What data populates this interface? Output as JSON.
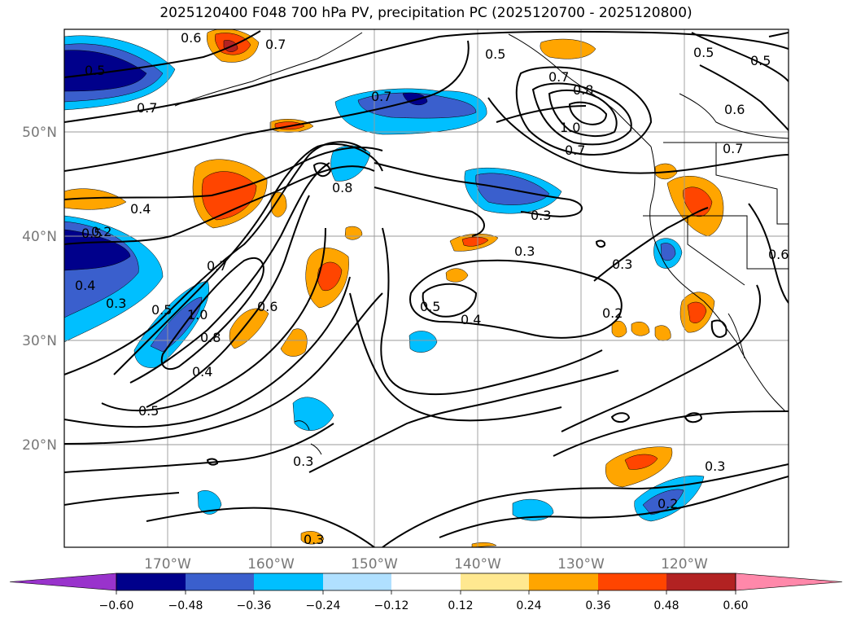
{
  "title": "2025120400 F048 700 hPa PV, precipitation PC (2025120700 - 2025120800)",
  "lat_labels": [
    "50°N",
    "40°N",
    "30°N",
    "20°N"
  ],
  "lon_labels": [
    "170°W",
    "160°W",
    "150°W",
    "140°W",
    "130°W",
    "120°W"
  ],
  "contour_labels": [
    "0.6",
    "0.7",
    "0.5",
    "0.7",
    "0.4",
    "0.5",
    "0.4",
    "0.3",
    "0.8",
    "0.7",
    "0.5",
    "1.0",
    "0.6",
    "0.8",
    "0.4",
    "0.5",
    "0.3",
    "0.7",
    "0.5",
    "0.8",
    "0.7",
    "1.0",
    "0.7",
    "0.5",
    "0.5",
    "0.6",
    "0.7",
    "0.3",
    "0.3",
    "0.5",
    "0.4",
    "0.3",
    "0.2",
    "0.6",
    "0.3",
    "0.2",
    "0.3",
    "0.2"
  ],
  "colorbar": {
    "colors": [
      "#9933cc",
      "#00008b",
      "#3a5fcd",
      "#00bfff",
      "#b0e0ff",
      "#ffffff",
      "#ffe890",
      "#ffa500",
      "#ff4500",
      "#b22222",
      "#ff88aa"
    ],
    "tick_labels": [
      "−0.60",
      "−0.48",
      "−0.36",
      "−0.24",
      "−0.12",
      "0.12",
      "0.24",
      "0.36",
      "0.48",
      "0.60"
    ]
  }
}
